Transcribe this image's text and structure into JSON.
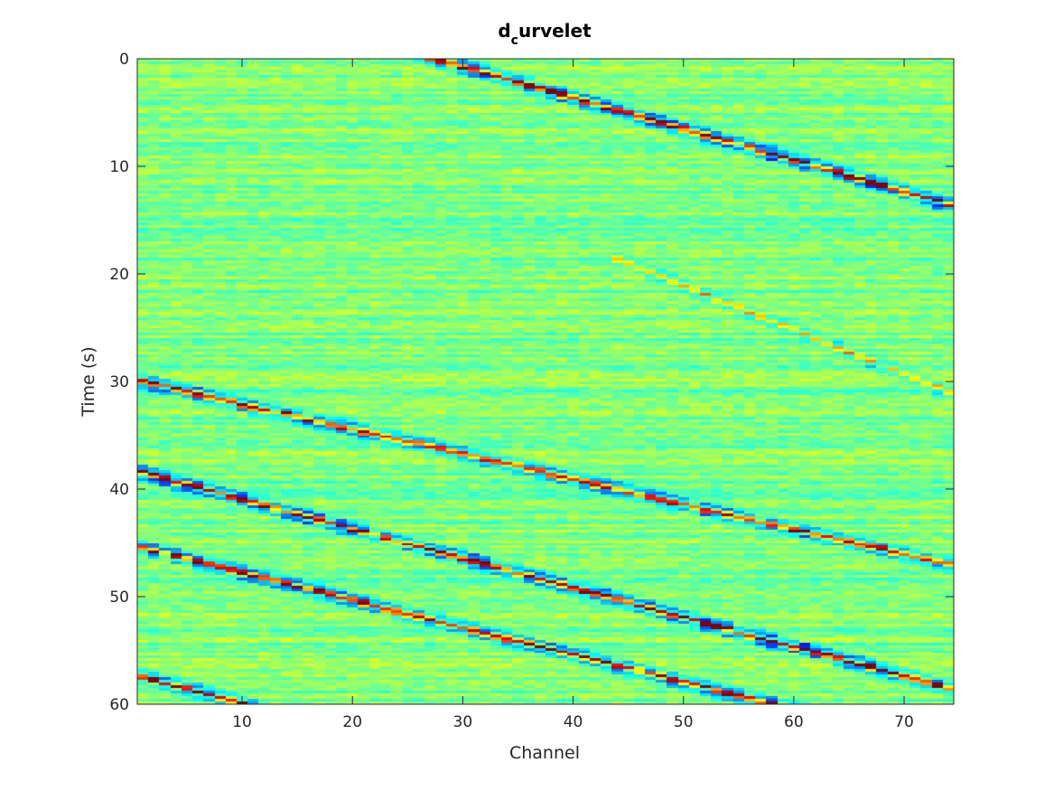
{
  "chart_data": {
    "type": "heatmap",
    "title": "d",
    "title_subscript": "c",
    "title_suffix": "urvelet",
    "xlabel": "Channel",
    "ylabel": "Time (s)",
    "xlim": [
      0.5,
      74.5
    ],
    "ylim": [
      0,
      60
    ],
    "y_reversed": true,
    "x_ticks": [
      10,
      20,
      30,
      40,
      50,
      60,
      70
    ],
    "y_ticks": [
      0,
      10,
      20,
      30,
      40,
      50,
      60
    ],
    "colormap": "jet",
    "grid": false,
    "n_channels": 74,
    "n_time_samples": 240,
    "events": [
      {
        "name": "upper-right-arrival",
        "t_start": -1.0,
        "channel_start": 24,
        "t_end": 13.5,
        "channel_end": 74,
        "amplitude": 1.0
      },
      {
        "name": "mid-faint-arrival",
        "t_start": 19.0,
        "channel_start": 45,
        "t_end": 31.0,
        "channel_end": 74,
        "amplitude": 0.35
      },
      {
        "name": "lower-arrival-1",
        "t_start": 30.0,
        "channel_start": 1,
        "t_end": 47.0,
        "channel_end": 74,
        "amplitude": 0.8
      },
      {
        "name": "lower-arrival-2",
        "t_start": 38.5,
        "channel_start": 1,
        "t_end": 58.5,
        "channel_end": 74,
        "amplitude": 1.0
      },
      {
        "name": "lower-arrival-3",
        "t_start": 45.5,
        "channel_start": 1,
        "t_end": 60.5,
        "channel_end": 60,
        "amplitude": 0.9
      },
      {
        "name": "bottom-left-arrival",
        "t_start": 57.5,
        "channel_start": 1,
        "t_end": 61.0,
        "channel_end": 14,
        "amplitude": 0.9
      }
    ]
  }
}
